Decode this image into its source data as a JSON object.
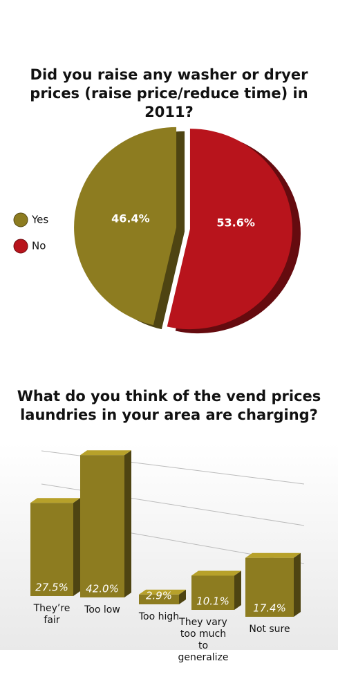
{
  "chart_data": [
    {
      "type": "pie",
      "title": "Did you raise any washer or dryer prices (raise price/reduce time) in 2011?",
      "categories": [
        "Yes",
        "No"
      ],
      "values": [
        46.4,
        53.6
      ],
      "value_labels": [
        "46.4%",
        "53.6%"
      ],
      "colors": [
        "#8d7c20",
        "#b8141c"
      ]
    },
    {
      "type": "bar",
      "title": "What do you think of the vend prices laundries in your area are charging?",
      "categories": [
        "They’re fair",
        "Too low",
        "Too high",
        "They vary too much to generalize",
        "Not sure"
      ],
      "values": [
        27.5,
        42.0,
        2.9,
        10.1,
        17.4
      ],
      "value_labels": [
        "27.5%",
        "42.0%",
        "2.9%",
        "10.1%",
        "17.4%"
      ],
      "color": "#8d7c20"
    }
  ]
}
